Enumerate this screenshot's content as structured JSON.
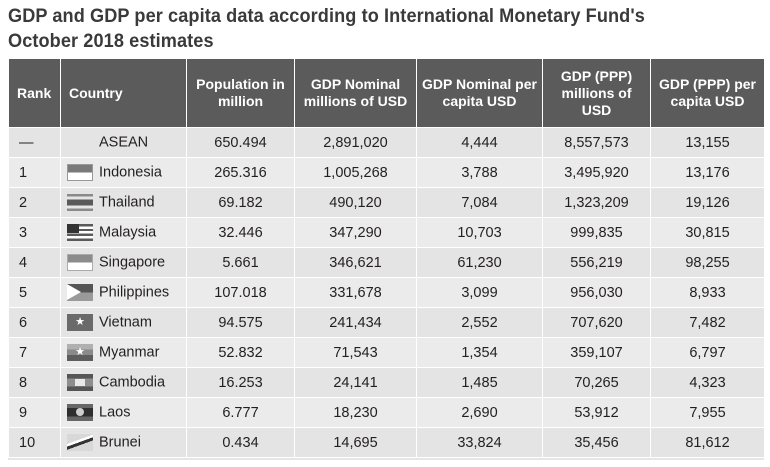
{
  "title": "GDP and GDP per capita data according to International Monetary Fund's October 2018 estimates",
  "headers": {
    "rank": "Rank",
    "country": "Country",
    "population": "Population in million",
    "gdp_nominal": "GDP Nominal millions of USD",
    "gdp_nominal_pc": "GDP Nominal per capita USD",
    "gdp_ppp": "GDP (PPP) millions of USD",
    "gdp_ppp_pc": "GDP (PPP) per capita USD"
  },
  "rows": [
    {
      "rank": "—",
      "country": "ASEAN",
      "flag": "none",
      "population": "650.494",
      "gdp_nominal": "2,891,020",
      "gdp_nominal_pc": "4,444",
      "gdp_ppp": "8,557,573",
      "gdp_ppp_pc": "13,155"
    },
    {
      "rank": "1",
      "country": "Indonesia",
      "flag": "flag-indonesia",
      "population": "265.316",
      "gdp_nominal": "1,005,268",
      "gdp_nominal_pc": "3,788",
      "gdp_ppp": "3,495,920",
      "gdp_ppp_pc": "13,176"
    },
    {
      "rank": "2",
      "country": "Thailand",
      "flag": "flag-thailand",
      "population": "69.182",
      "gdp_nominal": "490,120",
      "gdp_nominal_pc": "7,084",
      "gdp_ppp": "1,323,209",
      "gdp_ppp_pc": "19,126"
    },
    {
      "rank": "3",
      "country": "Malaysia",
      "flag": "flag-malaysia",
      "population": "32.446",
      "gdp_nominal": "347,290",
      "gdp_nominal_pc": "10,703",
      "gdp_ppp": "999,835",
      "gdp_ppp_pc": "30,815"
    },
    {
      "rank": "4",
      "country": "Singapore",
      "flag": "flag-singapore",
      "population": "5.661",
      "gdp_nominal": "346,621",
      "gdp_nominal_pc": "61,230",
      "gdp_ppp": "556,219",
      "gdp_ppp_pc": "98,255"
    },
    {
      "rank": "5",
      "country": "Philippines",
      "flag": "flag-philippines",
      "population": "107.018",
      "gdp_nominal": "331,678",
      "gdp_nominal_pc": "3,099",
      "gdp_ppp": "956,030",
      "gdp_ppp_pc": "8,933"
    },
    {
      "rank": "6",
      "country": "Vietnam",
      "flag": "flag-vietnam",
      "population": "94.575",
      "gdp_nominal": "241,434",
      "gdp_nominal_pc": "2,552",
      "gdp_ppp": "707,620",
      "gdp_ppp_pc": "7,482"
    },
    {
      "rank": "7",
      "country": "Myanmar",
      "flag": "flag-myanmar",
      "population": "52.832",
      "gdp_nominal": "71,543",
      "gdp_nominal_pc": "1,354",
      "gdp_ppp": "359,107",
      "gdp_ppp_pc": "6,797"
    },
    {
      "rank": "8",
      "country": "Cambodia",
      "flag": "flag-cambodia",
      "population": "16.253",
      "gdp_nominal": "24,141",
      "gdp_nominal_pc": "1,485",
      "gdp_ppp": "70,265",
      "gdp_ppp_pc": "4,323"
    },
    {
      "rank": "9",
      "country": "Laos",
      "flag": "flag-laos",
      "population": "6.777",
      "gdp_nominal": "18,230",
      "gdp_nominal_pc": "2,690",
      "gdp_ppp": "53,912",
      "gdp_ppp_pc": "7,955"
    },
    {
      "rank": "10",
      "country": "Brunei",
      "flag": "flag-brunei",
      "population": "0.434",
      "gdp_nominal": "14,695",
      "gdp_nominal_pc": "33,824",
      "gdp_ppp": "35,456",
      "gdp_ppp_pc": "81,612"
    }
  ]
}
